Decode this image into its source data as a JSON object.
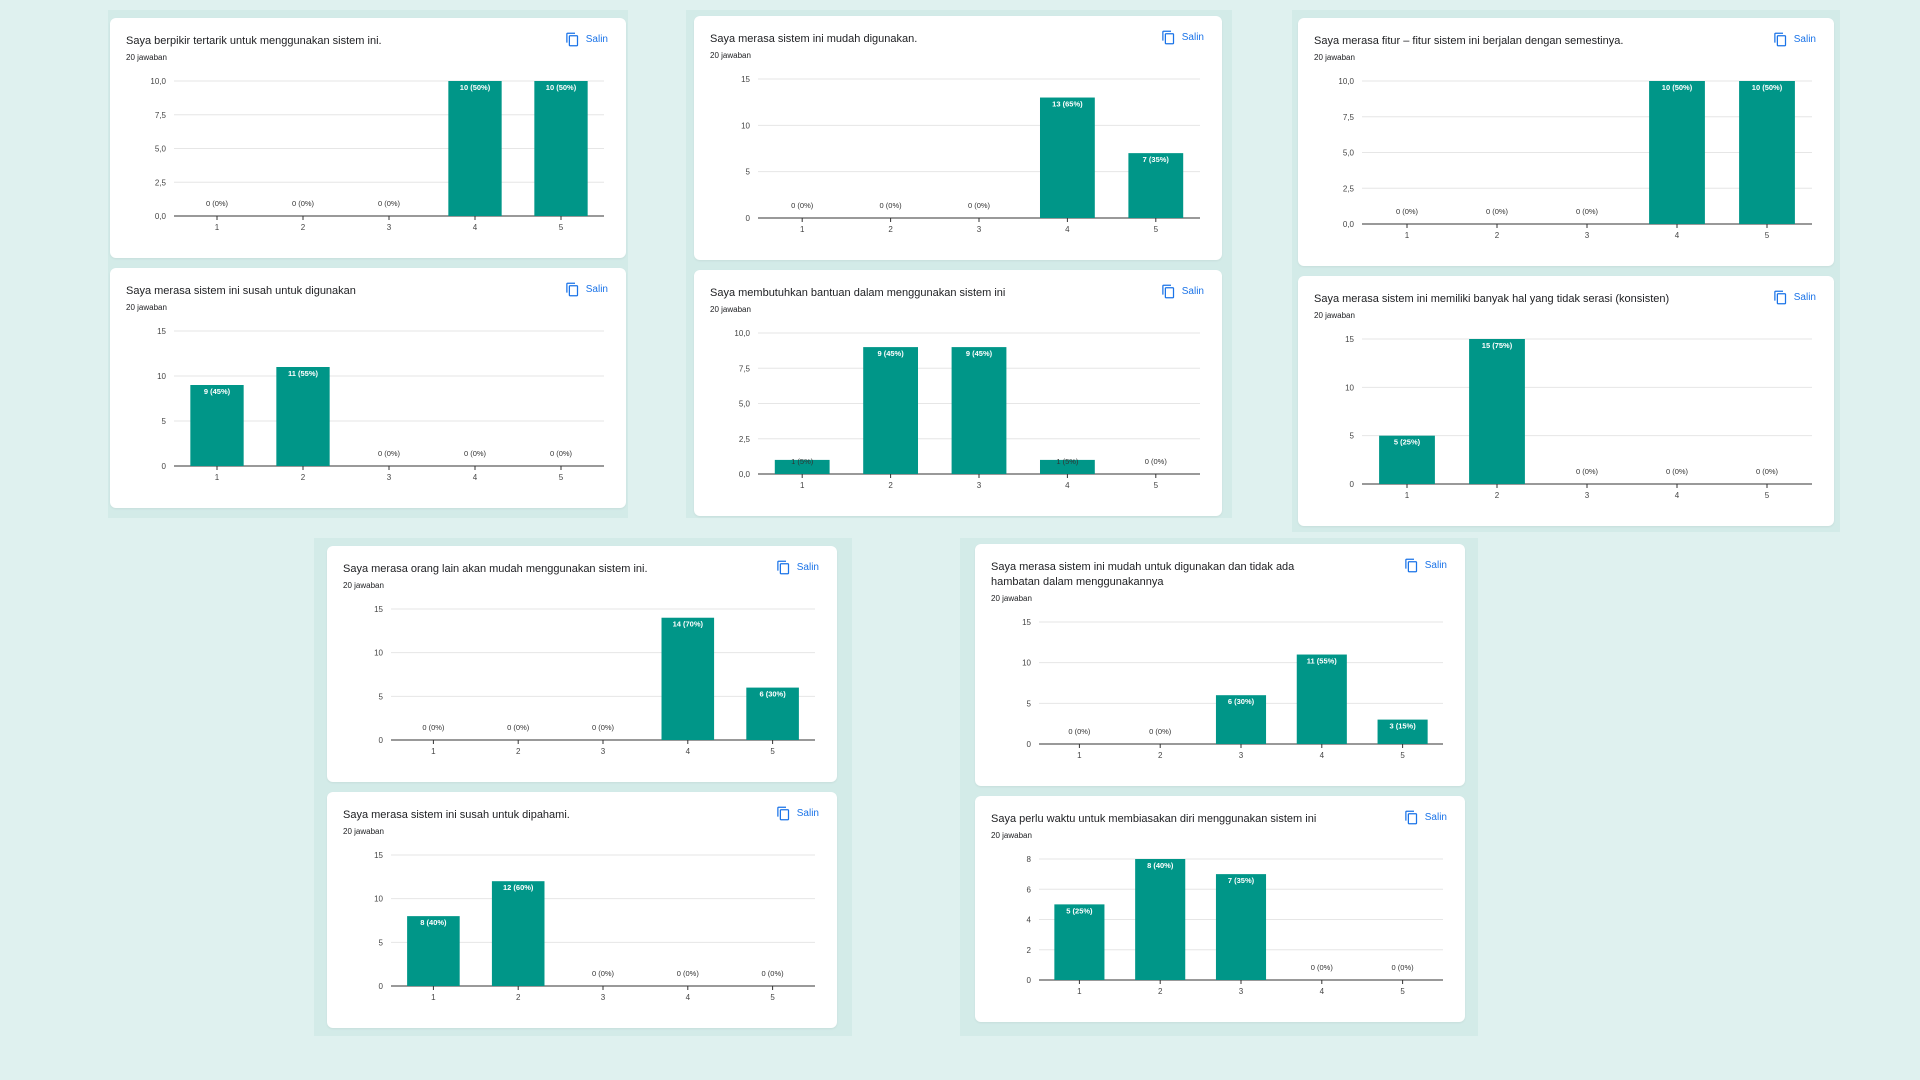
{
  "copy_label": "Salin",
  "bar_color": "#009688",
  "accent_color": "#1a73e8",
  "chart_data": [
    {
      "type": "bar",
      "title": "Saya berpikir tertarik untuk menggunakan sistem ini.",
      "subtitle": "20 jawaban",
      "categories": [
        "1",
        "2",
        "3",
        "4",
        "5"
      ],
      "values": [
        0,
        0,
        0,
        10,
        10
      ],
      "labels": [
        "0 (0%)",
        "0 (0%)",
        "0 (0%)",
        "10 (50%)",
        "10 (50%)"
      ],
      "ylim": [
        0,
        10
      ],
      "yticks": [
        "0,0",
        "2,5",
        "5,0",
        "7,5",
        "10,0"
      ]
    },
    {
      "type": "bar",
      "title": "Saya merasa sistem ini mudah digunakan.",
      "subtitle": "20 jawaban",
      "categories": [
        "1",
        "2",
        "3",
        "4",
        "5"
      ],
      "values": [
        0,
        0,
        0,
        13,
        7
      ],
      "labels": [
        "0 (0%)",
        "0 (0%)",
        "0 (0%)",
        "13 (65%)",
        "7 (35%)"
      ],
      "ylim": [
        0,
        15
      ],
      "yticks": [
        "0",
        "5",
        "10",
        "15"
      ]
    },
    {
      "type": "bar",
      "title": "Saya merasa fitur – fitur sistem ini berjalan dengan semestinya.",
      "subtitle": "20 jawaban",
      "categories": [
        "1",
        "2",
        "3",
        "4",
        "5"
      ],
      "values": [
        0,
        0,
        0,
        10,
        10
      ],
      "labels": [
        "0 (0%)",
        "0 (0%)",
        "0 (0%)",
        "10 (50%)",
        "10 (50%)"
      ],
      "ylim": [
        0,
        10
      ],
      "yticks": [
        "0,0",
        "2,5",
        "5,0",
        "7,5",
        "10,0"
      ]
    },
    {
      "type": "bar",
      "title": "Saya merasa sistem ini susah untuk digunakan",
      "subtitle": "20 jawaban",
      "categories": [
        "1",
        "2",
        "3",
        "4",
        "5"
      ],
      "values": [
        9,
        11,
        0,
        0,
        0
      ],
      "labels": [
        "9 (45%)",
        "11 (55%)",
        "0 (0%)",
        "0 (0%)",
        "0 (0%)"
      ],
      "ylim": [
        0,
        15
      ],
      "yticks": [
        "0",
        "5",
        "10",
        "15"
      ]
    },
    {
      "type": "bar",
      "title": "Saya membutuhkan bantuan dalam menggunakan sistem ini",
      "subtitle": "20 jawaban",
      "categories": [
        "1",
        "2",
        "3",
        "4",
        "5"
      ],
      "values": [
        1,
        9,
        9,
        1,
        0
      ],
      "labels": [
        "1 (5%)",
        "9 (45%)",
        "9 (45%)",
        "1 (5%)",
        "0 (0%)"
      ],
      "ylim": [
        0,
        10
      ],
      "yticks": [
        "0,0",
        "2,5",
        "5,0",
        "7,5",
        "10,0"
      ]
    },
    {
      "type": "bar",
      "title": "Saya merasa sistem ini memiliki banyak hal yang tidak serasi (konsisten)",
      "subtitle": "20 jawaban",
      "categories": [
        "1",
        "2",
        "3",
        "4",
        "5"
      ],
      "values": [
        5,
        15,
        0,
        0,
        0
      ],
      "labels": [
        "5 (25%)",
        "15 (75%)",
        "0 (0%)",
        "0 (0%)",
        "0 (0%)"
      ],
      "ylim": [
        0,
        15
      ],
      "yticks": [
        "0",
        "5",
        "10",
        "15"
      ]
    },
    {
      "type": "bar",
      "title": "Saya merasa orang lain akan mudah menggunakan sistem ini.",
      "subtitle": "20 jawaban",
      "categories": [
        "1",
        "2",
        "3",
        "4",
        "5"
      ],
      "values": [
        0,
        0,
        0,
        14,
        6
      ],
      "labels": [
        "0 (0%)",
        "0 (0%)",
        "0 (0%)",
        "14 (70%)",
        "6 (30%)"
      ],
      "ylim": [
        0,
        15
      ],
      "yticks": [
        "0",
        "5",
        "10",
        "15"
      ]
    },
    {
      "type": "bar",
      "title": "Saya merasa sistem ini mudah untuk digunakan dan tidak ada hambatan dalam menggunakannya",
      "subtitle": "20 jawaban",
      "categories": [
        "1",
        "2",
        "3",
        "4",
        "5"
      ],
      "values": [
        0,
        0,
        6,
        11,
        3
      ],
      "labels": [
        "0 (0%)",
        "0 (0%)",
        "6 (30%)",
        "11 (55%)",
        "3 (15%)"
      ],
      "ylim": [
        0,
        15
      ],
      "yticks": [
        "0",
        "5",
        "10",
        "15"
      ]
    },
    {
      "type": "bar",
      "title": "Saya merasa sistem ini susah untuk dipahami.",
      "subtitle": "20 jawaban",
      "categories": [
        "1",
        "2",
        "3",
        "4",
        "5"
      ],
      "values": [
        8,
        12,
        0,
        0,
        0
      ],
      "labels": [
        "8 (40%)",
        "12 (60%)",
        "0 (0%)",
        "0 (0%)",
        "0 (0%)"
      ],
      "ylim": [
        0,
        15
      ],
      "yticks": [
        "0",
        "5",
        "10",
        "15"
      ]
    },
    {
      "type": "bar",
      "title": "Saya perlu waktu untuk membiasakan diri menggunakan sistem ini",
      "subtitle": "20 jawaban",
      "categories": [
        "1",
        "2",
        "3",
        "4",
        "5"
      ],
      "values": [
        5,
        8,
        7,
        0,
        0
      ],
      "labels": [
        "5 (25%)",
        "8 (40%)",
        "7 (35%)",
        "0 (0%)",
        "0 (0%)"
      ],
      "ylim": [
        0,
        8
      ],
      "yticks": [
        "0",
        "2",
        "4",
        "6",
        "8"
      ]
    }
  ]
}
